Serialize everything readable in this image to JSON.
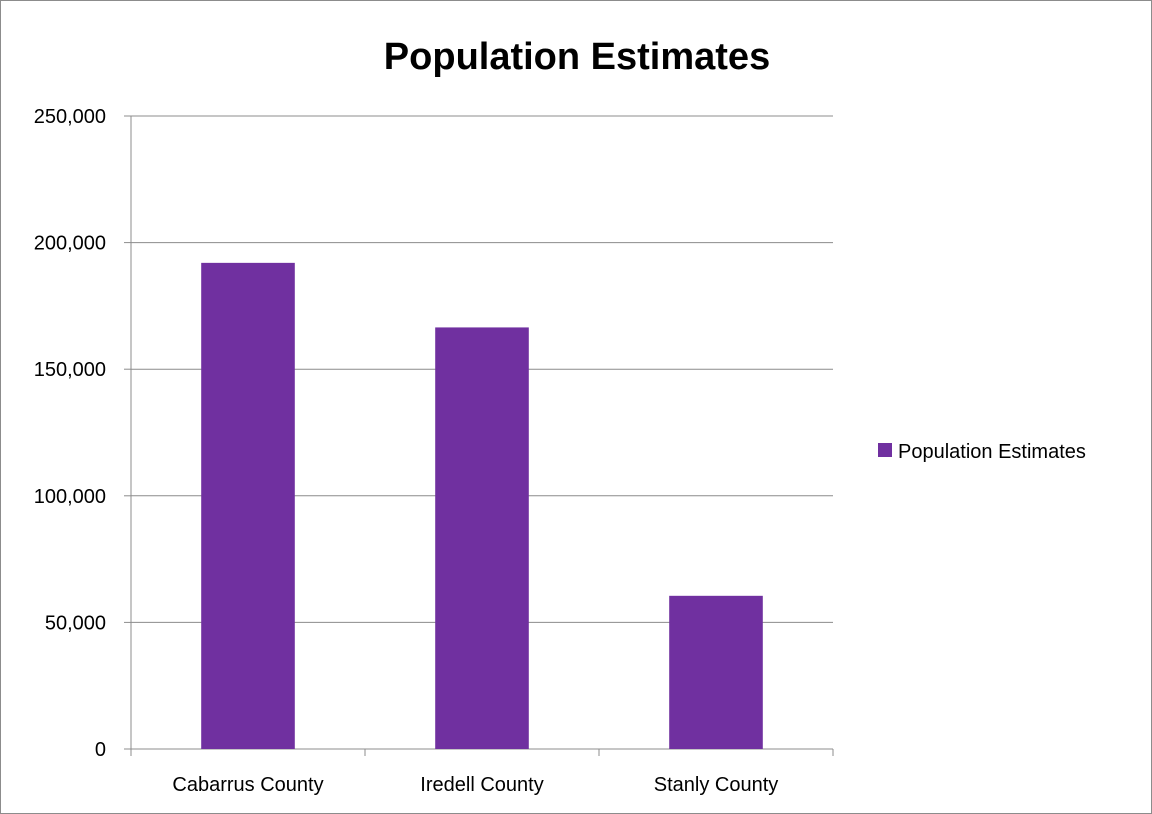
{
  "chart_data": {
    "type": "bar",
    "title": "Population Estimates",
    "categories": [
      "Cabarrus County",
      "Iredell County",
      "Stanly County"
    ],
    "series": [
      {
        "name": "Population Estimates",
        "values": [
          192000,
          166500,
          60500
        ],
        "color": "#7030A0"
      }
    ],
    "ylim": [
      0,
      250000
    ],
    "yticks": [
      0,
      50000,
      100000,
      150000,
      200000,
      250000
    ],
    "ytick_labels": [
      "0",
      "50,000",
      "100,000",
      "150,000",
      "200,000",
      "250,000"
    ],
    "xlabel": "",
    "ylabel": "",
    "grid": true,
    "legend_position": "right"
  }
}
